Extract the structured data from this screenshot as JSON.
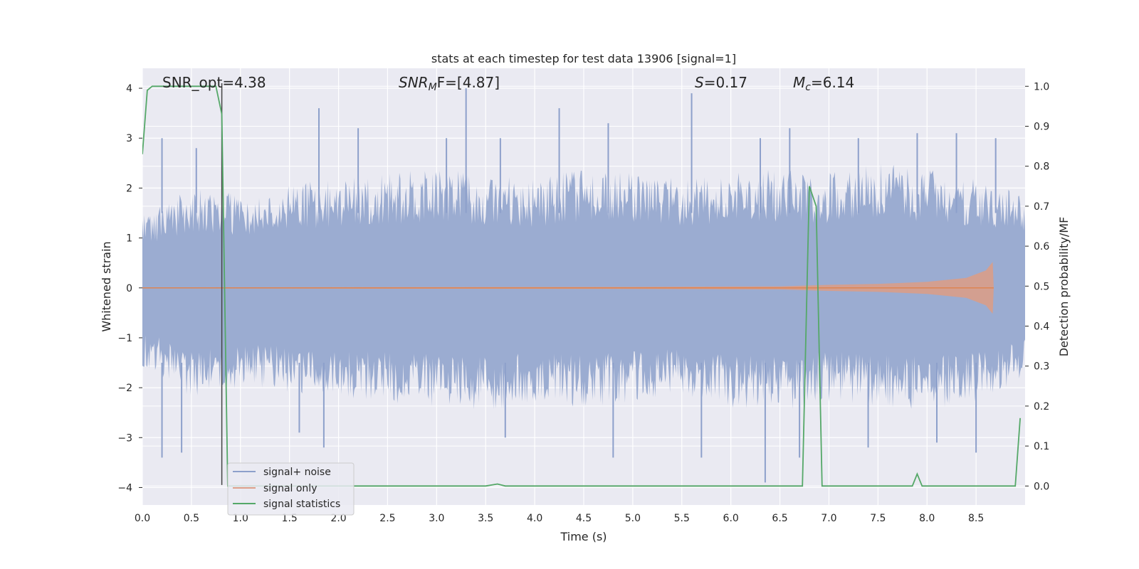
{
  "chart_data": {
    "type": "line",
    "title": "stats at each timestep for test data 13906 [signal=1]",
    "xlabel": "Time (s)",
    "ylabel": "Whitened strain",
    "y2label": "Detection probability/MF",
    "xlim": [
      0,
      9.0
    ],
    "ylim": [
      -4.35,
      4.4
    ],
    "y2lim": [
      -0.0475,
      1.045
    ],
    "x_ticks": [
      "0.0",
      "0.5",
      "1.0",
      "1.5",
      "2.0",
      "2.5",
      "3.0",
      "3.5",
      "4.0",
      "4.5",
      "5.0",
      "5.5",
      "6.0",
      "6.5",
      "7.0",
      "7.5",
      "8.0",
      "8.5"
    ],
    "y_ticks": [
      "4",
      "3",
      "2",
      "1",
      "0",
      "−1",
      "−2",
      "−3",
      "−4"
    ],
    "y2_ticks": [
      "1.0",
      "0.9",
      "0.8",
      "0.7",
      "0.6",
      "0.5",
      "0.4",
      "0.3",
      "0.2",
      "0.1",
      "0.0"
    ],
    "grid": true,
    "legend_position": "lower-left",
    "annotations": {
      "snr_opt": "SNR_opt=4.38",
      "snr_mf_base": "SNR",
      "snr_mf_sub": "M",
      "snr_mf_rest": "F=[4.87]",
      "s_italic": "S",
      "s_rest": "=0.17",
      "mc_base": "M",
      "mc_sub": "c",
      "mc_rest": "=6.14"
    },
    "marker_line_x": 0.81,
    "series": [
      {
        "name": "signal+ noise",
        "color": "#8da0cb",
        "description_axis": "left",
        "envelope_upper": [
          [
            0,
            1.5
          ],
          [
            0.5,
            2.0
          ],
          [
            1,
            1.9
          ],
          [
            1.5,
            2.1
          ],
          [
            2,
            2.2
          ],
          [
            2.5,
            2.3
          ],
          [
            3,
            2.4
          ],
          [
            3.5,
            2.3
          ],
          [
            4,
            2.2
          ],
          [
            4.5,
            2.4
          ],
          [
            5,
            2.3
          ],
          [
            5.5,
            2.2
          ],
          [
            6,
            2.3
          ],
          [
            6.5,
            2.4
          ],
          [
            7,
            2.3
          ],
          [
            7.5,
            2.5
          ],
          [
            8,
            2.4
          ],
          [
            8.5,
            2.2
          ],
          [
            9,
            1.9
          ]
        ],
        "envelope_lower": [
          [
            0,
            -1.6
          ],
          [
            0.5,
            -2.2
          ],
          [
            1,
            -2.0
          ],
          [
            1.5,
            -2.1
          ],
          [
            2,
            -2.2
          ],
          [
            2.5,
            -2.3
          ],
          [
            3,
            -2.4
          ],
          [
            3.5,
            -2.5
          ],
          [
            4,
            -2.3
          ],
          [
            4.5,
            -2.4
          ],
          [
            5,
            -2.3
          ],
          [
            5.5,
            -2.2
          ],
          [
            6,
            -2.4
          ],
          [
            6.5,
            -2.5
          ],
          [
            7,
            -2.3
          ],
          [
            7.5,
            -2.4
          ],
          [
            8,
            -2.5
          ],
          [
            8.5,
            -2.3
          ],
          [
            9,
            -1.8
          ]
        ],
        "peaks": [
          [
            0.2,
            3.0
          ],
          [
            0.55,
            2.8
          ],
          [
            1.8,
            3.6
          ],
          [
            2.2,
            3.2
          ],
          [
            3.1,
            3.0
          ],
          [
            3.3,
            4.0
          ],
          [
            3.65,
            3.0
          ],
          [
            4.25,
            3.6
          ],
          [
            4.75,
            3.3
          ],
          [
            5.6,
            3.9
          ],
          [
            6.3,
            3.0
          ],
          [
            6.6,
            3.2
          ],
          [
            7.3,
            3.0
          ],
          [
            7.9,
            3.1
          ],
          [
            8.3,
            3.1
          ],
          [
            8.7,
            3.0
          ]
        ],
        "troughs": [
          [
            0.2,
            -3.4
          ],
          [
            0.4,
            -3.3
          ],
          [
            1.6,
            -2.9
          ],
          [
            1.85,
            -3.2
          ],
          [
            3.7,
            -3.0
          ],
          [
            4.8,
            -3.4
          ],
          [
            5.7,
            -3.4
          ],
          [
            6.35,
            -3.9
          ],
          [
            6.7,
            -3.4
          ],
          [
            7.4,
            -3.2
          ],
          [
            8.1,
            -3.1
          ],
          [
            8.5,
            -3.3
          ]
        ]
      },
      {
        "name": "signal only",
        "color": "#dd9f8a",
        "description_axis": "left",
        "chirp_envelope": [
          [
            0,
            0.01
          ],
          [
            5,
            0.02
          ],
          [
            6.5,
            0.03
          ],
          [
            7,
            0.06
          ],
          [
            7.5,
            0.08
          ],
          [
            8,
            0.12
          ],
          [
            8.4,
            0.2
          ],
          [
            8.6,
            0.35
          ],
          [
            8.67,
            0.52
          ],
          [
            8.68,
            0
          ]
        ]
      },
      {
        "name": "signal statistics",
        "color": "#55a868",
        "description_axis": "right",
        "x": [
          0,
          0.05,
          0.1,
          0.15,
          0.3,
          0.5,
          0.7,
          0.75,
          0.81,
          0.87,
          1.0,
          2.0,
          3.0,
          3.5,
          3.62,
          3.7,
          4.0,
          5.0,
          6.0,
          6.5,
          6.73,
          6.8,
          6.87,
          6.93,
          7.0,
          7.5,
          7.85,
          7.9,
          7.95,
          8.0,
          8.5,
          8.9,
          8.95
        ],
        "values": [
          0.83,
          0.99,
          1.0,
          1.0,
          1.0,
          1.0,
          1.0,
          1.0,
          0.93,
          0.0,
          0.0,
          0.0,
          0.0,
          0.0,
          0.005,
          0.0,
          0.0,
          0.0,
          0.0,
          0.0,
          0.0,
          0.75,
          0.7,
          0.0,
          0.0,
          0.0,
          0.0,
          0.03,
          0.0,
          0.0,
          0.0,
          0.0,
          0.17
        ]
      }
    ]
  }
}
